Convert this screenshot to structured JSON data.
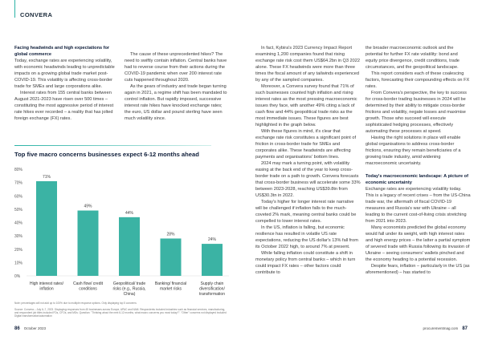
{
  "header": {
    "brand": "CONVERA"
  },
  "col1": {
    "heading": "Facing headwinds and high expectations for global commerce",
    "p1": "Today, exchange rates are experiencing volatility, with economic headwinds leading to unpredictable impacts on a growing global trade market post-COVID-19. This volatility is affecting cross-border trade for SMEs and large corporations alike.",
    "p2": "Interest rates from 155 central banks between August 2021-2023 have risen over 500 times – constituting the most aggressive period of interest rate hikes ever recorded – a reality that has jolted foreign exchange (FX) rates."
  },
  "col2": {
    "p1": "The cause of these unprecedented hikes? The need to swiftly contain inflation. Central banks have had to reverse course from their actions during the COVID-19 pandemic when over 200 interest rate cuts happened throughout 2020.",
    "p2": "As the gears of industry and trade began turning again in 2021, a regime shift has been mandated to control inflation. But rapidly imposed, successive interest rate hikes have knocked exchange rates; the euro, US dollar and pound sterling have seen much volatility since."
  },
  "col3": {
    "p1": "In fact, Kybira's 2023 Currency Impact Report examining 1,200 companies found that rising exchange rate risk cost them US$64.2bn in Q3 2022 alone. These FX headwinds were more than three times the fiscal amount of any tailwinds experienced by any of the sampled companies.",
    "p2": "Moreover, a Convera survey found that 71% of such businesses counted high inflation and rising interest rates as the most pressing macroeconomic issues they face, with another 49% citing a lack of cash flow and 44% geopolitical trade risks as the most immediate issues. These figures are best highlighted in the graph below.",
    "p3": "With these figures in mind, it's clear that exchange rate risk constitutes a significant point of friction in cross-border trade for SMEs and corporates alike. These headwinds are affecting payments and organisations' bottom lines.",
    "p4": "2024 may mark a turning point, with volatility easing at the back end of the year to keep cross-border trade on a path to growth. Convera forecasts that cross-border business will accelerate some 33% between 2023-2028, reaching US$39.8tn from US$30.3tn in 2022.",
    "p5": "Today's higher for longer interest rate narrative will be challenged if inflation falls to the much-coveted 2% mark, meaning central banks could be compelled to lower interest rates.",
    "p6": "In the US, inflation is falling, but economic resilience has resulted in volatile US rate expectations, reducing the US dollar's 13% fall from its October 2022 high, to around 7% at present.",
    "p7": "While falling inflation could constitute a shift in monetary policy from central banks – which in turn could impact FX rates – other factors could contribute to"
  },
  "col4": {
    "p1": "the broader macroeconomic outlook and the potential for further FX rate volatility: bond and equity price divergence, credit conditions, trade circumstances, and the geopolitical landscape.",
    "p2": "This report considers each of these coalescing factors, forecasting their compounding effects on FX rates.",
    "p3": "From Convera's perspective, the key to success for cross-border trading businesses in 2024 will be determined by their ability to mitigate cross-border frictions and volatility, negate losses and maximise growth. Those who succeed will execute sophisticated hedging processes, effectively automating these processes at speed.",
    "p4": "Having the right solutions in place will enable global organisations to address cross-border frictions, ensuring they remain beneficiaries of a growing trade industry, amid widening macroeconomic uncertainty.",
    "heading": "Today's macroeconomic landscape: A picture of economic uncertainty",
    "p5": "Exchange rates are experiencing volatility today. This is a legacy of recent crises – from the US-China trade war, the aftermath of fiscal COVID-19 measures and Russia's war with Ukraine – all leading to the current cost-of-living crisis stretching from 2021 into 2023.",
    "p6": "Many economists predicted the global economy would fall under its weight, with high interest rates and high energy prices – the latter a partial symptom of severed trade with Russia following its invasion of Ukraine – seeing consumers' wallets pinched and the economy heading to a potential recession.",
    "p7": "Despite fears, inflation – particularly in the US (as aforementioned) – has started to"
  },
  "chart_data": {
    "type": "bar",
    "title": "Top five macro concerns businesses expect 6-12 months ahead",
    "categories": [
      "High interest rates/ inflation",
      "Cash flow/ credit conditions",
      "Geopolitical/ trade risks (e.g., Russia, China)",
      "Banking/ financial market risks",
      "Supply chain diversification/ transformation"
    ],
    "values": [
      71,
      49,
      44,
      28,
      24
    ],
    "data_labels": [
      "71%",
      "49%",
      "44%",
      "28%",
      "24%"
    ],
    "ylim": [
      0,
      80
    ],
    "yticks": [
      "0%",
      "10%",
      "20%",
      "30%",
      "40%",
      "50%",
      "60%",
      "70%",
      "80%"
    ],
    "color": "#3bb3a4",
    "xlabel": "",
    "ylabel": ""
  },
  "notes": {
    "note": "Note: percentages will not add up to 100% due to multiple response options. Only displaying top 5 concerns",
    "source": "Source: Convera – July 6–7, 2023. Displaying responses from 45 businesses across Europe, APAC and NAM. Respondents included industries such as financial services, manufacturing, and respondent job titles included FDs, CFOs, and MDs. Question: \"Thinking about the next 6-12 months, what macro concerns you most today?\". \"Other\" concerns not displayed included Digital transformation/automation"
  },
  "footer": {
    "left_page": "86",
    "left_date": "October 2023",
    "right_site": "procurementmag.com",
    "right_page": "87"
  }
}
